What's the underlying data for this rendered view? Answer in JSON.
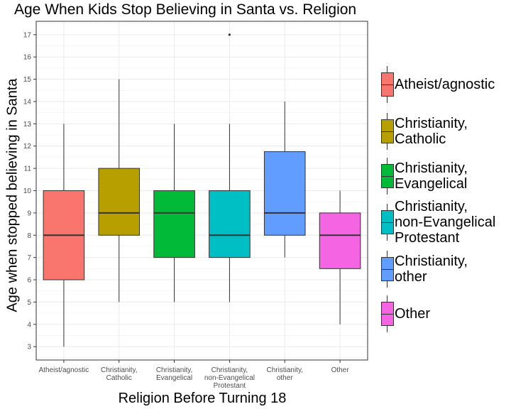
{
  "chart_data": {
    "type": "box",
    "title": "Age When Kids Stop Believing in Santa vs. Religion",
    "xlabel": "Religion Before Turning 18",
    "ylabel": "Age when stopped believing in Santa",
    "ylim": [
      2.4,
      17.6
    ],
    "yticks": [
      3,
      4,
      5,
      6,
      7,
      8,
      9,
      10,
      11,
      12,
      13,
      14,
      15,
      16,
      17
    ],
    "grid": true,
    "legend_position": "right",
    "categories": [
      "Atheist/agnostic",
      "Christianity,\nCatholic",
      "Christianity,\nEvangelical",
      "Christianity,\nnon-Evangelical\nProtestant",
      "Christianity,\nother",
      "Other"
    ],
    "series": [
      {
        "name": "Atheist/agnostic",
        "color": "#F8766D",
        "min": 3,
        "q1": 6,
        "median": 8,
        "q3": 10,
        "max": 13,
        "outliers": []
      },
      {
        "name": "Christianity,\nCatholic",
        "color": "#B79F00",
        "min": 5,
        "q1": 8,
        "median": 9,
        "q3": 11,
        "max": 15,
        "outliers": []
      },
      {
        "name": "Christianity,\nEvangelical",
        "color": "#00BA38",
        "min": 5,
        "q1": 7,
        "median": 9,
        "q3": 10,
        "max": 13,
        "outliers": []
      },
      {
        "name": "Christianity,\nnon-Evangelical\nProtestant",
        "color": "#00BFC4",
        "min": 5,
        "q1": 7,
        "median": 8,
        "q3": 10,
        "max": 13,
        "outliers": [
          17
        ]
      },
      {
        "name": "Christianity,\nother",
        "color": "#619CFF",
        "min": 7,
        "q1": 8,
        "median": 9,
        "q3": 11.75,
        "max": 14,
        "outliers": []
      },
      {
        "name": "Other",
        "color": "#F564E3",
        "min": 4,
        "q1": 6.5,
        "median": 8,
        "q3": 9,
        "max": 10,
        "outliers": []
      }
    ]
  }
}
